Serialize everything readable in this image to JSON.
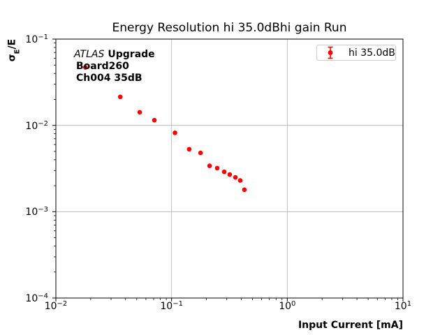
{
  "title": "Energy Resolution hi 35.0dBhi gain Run",
  "ylabel_parts": {
    "sigma": "σ",
    "sub": "E",
    "rest": "/E"
  },
  "annotation": {
    "experiment": "ATLAS",
    "upgrade": "Upgrade",
    "line2": "Board260",
    "line3": "Ch004 35dB"
  },
  "legend": {
    "label": "hi 35.0dB"
  },
  "colors": {
    "marker": "#ff0000",
    "grid": "#b0b0b0",
    "spine": "#000000",
    "legend_border": "#cccccc",
    "background": "#ffffff"
  },
  "chart_data": {
    "type": "scatter",
    "title": "Energy Resolution hi 35.0dBhi gain Run",
    "xlabel": "Input Current [mA]",
    "ylabel": "σ_E/E",
    "xscale": "log",
    "yscale": "log",
    "xlim": [
      0.01,
      10
    ],
    "ylim": [
      0.0001,
      0.1
    ],
    "x_tick_exponents": [
      -2,
      -1,
      0,
      1
    ],
    "y_tick_exponents": [
      -1,
      -2,
      -3,
      -4
    ],
    "grid": true,
    "legend_position": "upper right",
    "annotation_text": "ATLAS Upgrade\nBoard260\nCh004 35dB",
    "series": [
      {
        "name": "hi 35.0dB",
        "color": "#ff0000",
        "marker": "o",
        "points": [
          {
            "x": 0.018,
            "y": 0.047
          },
          {
            "x": 0.036,
            "y": 0.0214
          },
          {
            "x": 0.053,
            "y": 0.0142
          },
          {
            "x": 0.071,
            "y": 0.0115
          },
          {
            "x": 0.107,
            "y": 0.0082
          },
          {
            "x": 0.142,
            "y": 0.0053
          },
          {
            "x": 0.178,
            "y": 0.0048
          },
          {
            "x": 0.213,
            "y": 0.0034
          },
          {
            "x": 0.248,
            "y": 0.0032
          },
          {
            "x": 0.285,
            "y": 0.0029
          },
          {
            "x": 0.318,
            "y": 0.0027
          },
          {
            "x": 0.356,
            "y": 0.0025
          },
          {
            "x": 0.392,
            "y": 0.0023
          },
          {
            "x": 0.426,
            "y": 0.0018
          }
        ]
      }
    ]
  }
}
